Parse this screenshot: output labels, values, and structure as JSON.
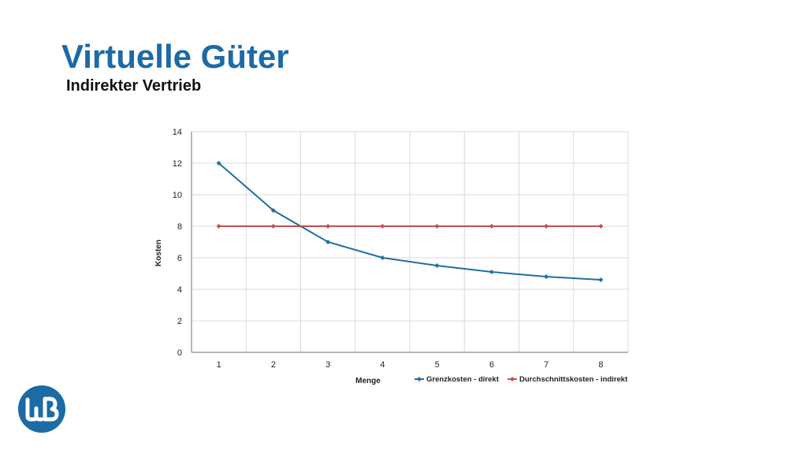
{
  "header": {
    "title": "Virtuelle Güter",
    "subtitle": "Indirekter Vertrieb"
  },
  "logo": {
    "icon": "wb-logo-icon",
    "text": "WB",
    "color": "#1c6aa6"
  },
  "chart_data": {
    "type": "line",
    "title": "",
    "xlabel": "Menge",
    "ylabel": "Kosten",
    "x": [
      1,
      2,
      3,
      4,
      5,
      6,
      7,
      8
    ],
    "ylim": [
      0,
      14
    ],
    "yticks": [
      0,
      2,
      4,
      6,
      8,
      10,
      12,
      14
    ],
    "grid": true,
    "legend_position": "bottom",
    "series": [
      {
        "name": "Grenzkosten - direkt",
        "color": "#1f6fa3",
        "values": [
          12,
          9,
          7,
          6,
          5.5,
          5.1,
          4.8,
          4.6
        ]
      },
      {
        "name": "Durchschnittskosten - indirekt",
        "color": "#c0504d",
        "values": [
          8,
          8,
          8,
          8,
          8,
          8,
          8,
          8
        ]
      }
    ]
  }
}
